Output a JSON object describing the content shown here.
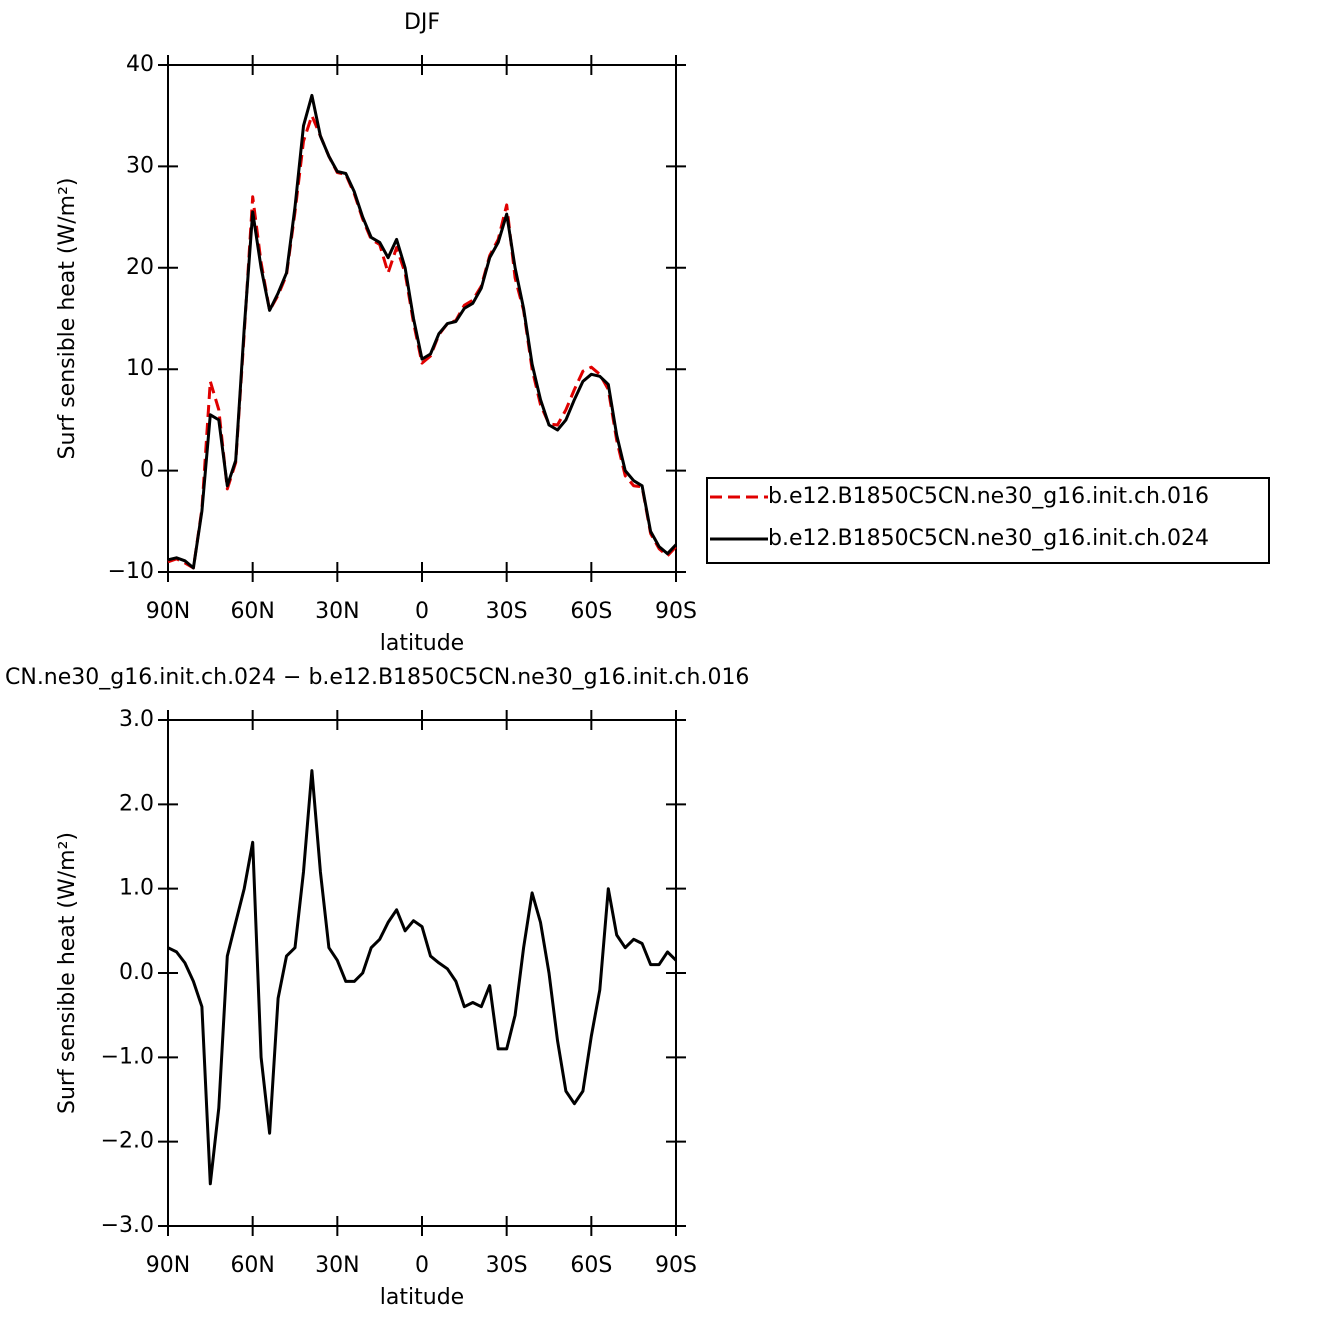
{
  "chart_data": [
    {
      "type": "line",
      "title": "DJF",
      "xlabel": "latitude",
      "ylabel": "Surf sensible heat (W/m²)",
      "x": [
        90,
        87,
        84,
        81,
        78,
        75,
        72,
        69,
        66,
        63,
        60,
        57,
        54,
        51,
        48,
        45,
        42,
        39,
        36,
        33,
        30,
        27,
        24,
        21,
        18,
        15,
        12,
        9,
        6,
        3,
        0,
        -3,
        -6,
        -9,
        -12,
        -15,
        -18,
        -21,
        -24,
        -27,
        -30,
        -33,
        -36,
        -39,
        -42,
        -45,
        -48,
        -51,
        -54,
        -57,
        -60,
        -63,
        -66,
        -69,
        -72,
        -75,
        -78,
        -81,
        -84,
        -87,
        -90
      ],
      "series": [
        {
          "name": "b.e12.B1850C5CN.ne30_g16.init.ch.016",
          "color": "#e00000",
          "dash": true,
          "values": [
            -9.0,
            -8.7,
            -9.1,
            -9.6,
            -3.8,
            8.8,
            6.0,
            -1.8,
            0.8,
            13.5,
            27.0,
            20.5,
            15.8,
            17.3,
            19.3,
            25.5,
            32.5,
            35.0,
            33.0,
            31.0,
            29.4,
            29.2,
            27.3,
            24.8,
            22.8,
            22.3,
            19.5,
            22.0,
            19.5,
            14.6,
            10.6,
            11.3,
            13.4,
            14.5,
            14.8,
            16.3,
            16.8,
            18.2,
            21.2,
            22.8,
            26.2,
            19.0,
            15.8,
            10.0,
            6.5,
            4.6,
            4.5,
            6.0,
            8.0,
            9.8,
            10.2,
            9.5,
            8.0,
            3.0,
            -0.5,
            -1.5,
            -1.6,
            -6.2,
            -7.7,
            -8.4,
            -7.5
          ]
        },
        {
          "name": "b.e12.B1850C5CN.ne30_g16.init.ch.024",
          "color": "#000000",
          "dash": false,
          "values": [
            -8.8,
            -8.6,
            -8.9,
            -9.6,
            -4.0,
            5.5,
            5.0,
            -1.5,
            1.0,
            14.0,
            25.5,
            20.0,
            15.8,
            17.5,
            19.5,
            26.0,
            34.0,
            37.0,
            33.0,
            31.0,
            29.5,
            29.3,
            27.5,
            25.0,
            23.0,
            22.5,
            21.0,
            22.8,
            20.0,
            15.0,
            11.0,
            11.5,
            13.5,
            14.5,
            14.7,
            16.0,
            16.5,
            18.0,
            21.0,
            22.5,
            25.3,
            20.0,
            16.0,
            10.5,
            7.0,
            4.5,
            4.0,
            5.0,
            7.0,
            8.8,
            9.5,
            9.3,
            8.5,
            3.5,
            0.0,
            -1.0,
            -1.5,
            -6.0,
            -7.5,
            -8.2,
            -7.3
          ]
        }
      ],
      "xlim": [
        90,
        -90
      ],
      "xticks": [
        {
          "value": 90,
          "label": "90N"
        },
        {
          "value": 60,
          "label": "60N"
        },
        {
          "value": 30,
          "label": "30N"
        },
        0,
        {
          "value": -30,
          "label": "30S"
        },
        {
          "value": -60,
          "label": "60S"
        },
        {
          "value": -90,
          "label": "90S"
        }
      ],
      "ylim": [
        -10,
        40
      ],
      "yticks": [
        {
          "value": -10,
          "label": "−10"
        },
        0,
        10,
        20,
        30,
        40
      ],
      "legend": "right"
    },
    {
      "type": "line",
      "title": "CN.ne30_g16.init.ch.024 − b.e12.B1850C5CN.ne30_g16.init.ch.016",
      "xlabel": "latitude",
      "ylabel": "Surf sensible heat (W/m²)",
      "x": [
        90,
        87,
        84,
        81,
        78,
        75,
        72,
        69,
        66,
        63,
        60,
        57,
        54,
        51,
        48,
        45,
        42,
        39,
        36,
        33,
        30,
        27,
        24,
        21,
        18,
        15,
        12,
        9,
        6,
        3,
        0,
        -3,
        -6,
        -9,
        -12,
        -15,
        -18,
        -21,
        -24,
        -27,
        -30,
        -33,
        -36,
        -39,
        -42,
        -45,
        -48,
        -51,
        -54,
        -57,
        -60,
        -63,
        -66,
        -69,
        -72,
        -75,
        -78,
        -81,
        -84,
        -87,
        -90
      ],
      "series": [
        {
          "color": "#000000",
          "dash": false,
          "values": [
            0.3,
            0.25,
            0.12,
            -0.1,
            -0.4,
            -2.5,
            -1.6,
            0.2,
            0.6,
            1.0,
            1.55,
            -1.0,
            -1.9,
            -0.3,
            0.2,
            0.3,
            1.2,
            2.4,
            1.2,
            0.3,
            0.15,
            -0.1,
            -0.1,
            0.0,
            0.3,
            0.4,
            0.6,
            0.75,
            0.5,
            0.62,
            0.55,
            0.2,
            0.12,
            0.05,
            -0.1,
            -0.4,
            -0.35,
            -0.4,
            -0.15,
            -0.9,
            -0.9,
            -0.5,
            0.3,
            0.95,
            0.6,
            0.0,
            -0.8,
            -1.4,
            -1.55,
            -1.4,
            -0.75,
            -0.2,
            1.0,
            0.45,
            0.3,
            0.4,
            0.35,
            0.1,
            0.1,
            0.25,
            0.15
          ]
        }
      ],
      "xlim": [
        90,
        -90
      ],
      "xticks": [
        {
          "value": 90,
          "label": "90N"
        },
        {
          "value": 60,
          "label": "60N"
        },
        {
          "value": 30,
          "label": "30N"
        },
        0,
        {
          "value": -30,
          "label": "30S"
        },
        {
          "value": -60,
          "label": "60S"
        },
        {
          "value": -90,
          "label": "90S"
        }
      ],
      "ylim": [
        -3,
        3
      ],
      "yticks": [
        {
          "value": -3,
          "label": "−3.0"
        },
        {
          "value": -2,
          "label": "−2.0"
        },
        {
          "value": -1,
          "label": "−1.0"
        },
        {
          "value": 0,
          "label": "0.0"
        },
        {
          "value": 1,
          "label": "1.0"
        },
        {
          "value": 2,
          "label": "2.0"
        },
        {
          "value": 3,
          "label": "3.0"
        }
      ]
    }
  ]
}
